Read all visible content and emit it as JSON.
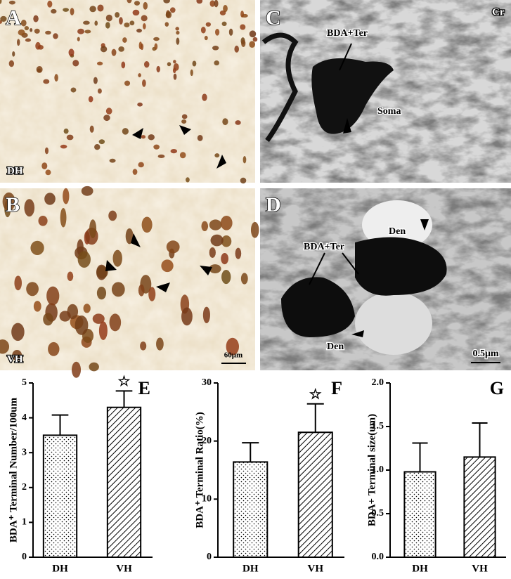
{
  "panels": [
    {
      "label": "A",
      "region": "DH"
    },
    {
      "label": "B",
      "region": "VH",
      "scale": "60μm"
    },
    {
      "label": "C",
      "corner": "Cr",
      "annotations": [
        "BDA+Ter",
        "Soma"
      ]
    },
    {
      "label": "D",
      "annotations": [
        "BDA+Ter",
        "Den",
        "Den"
      ],
      "scale": "0.5μm"
    }
  ],
  "chart_data": [
    {
      "type": "bar",
      "label": "E",
      "ylabel": "BDA⁺ Terminal Number/100um",
      "categories": [
        "DH",
        "VH"
      ],
      "values": [
        3.5,
        4.3
      ],
      "errors": [
        0.58,
        0.47
      ],
      "markers": [
        null,
        "☆"
      ],
      "patterns": [
        "dots",
        "hatch"
      ],
      "color": "#000000",
      "ylim": [
        0,
        5
      ],
      "yticks": [
        0,
        1,
        2,
        3,
        4,
        5
      ]
    },
    {
      "type": "bar",
      "label": "F",
      "ylabel": "BDA⁺ Terminal Ratio(%)",
      "categories": [
        "DH",
        "VH"
      ],
      "values": [
        16.4,
        21.5
      ],
      "errors": [
        3.3,
        4.9
      ],
      "markers": [
        null,
        "☆"
      ],
      "patterns": [
        "dots",
        "hatch"
      ],
      "color": "#000000",
      "ylim": [
        0,
        30
      ],
      "yticks": [
        0,
        10,
        20,
        30
      ]
    },
    {
      "type": "bar",
      "label": "G",
      "ylabel": "BDA+ Terminal size(um)",
      "categories": [
        "DH",
        "VH"
      ],
      "values": [
        0.98,
        1.15
      ],
      "errors": [
        0.33,
        0.39
      ],
      "patterns": [
        "dots",
        "hatch"
      ],
      "color": "#000000",
      "ylim": [
        0,
        2
      ],
      "yticks": [
        {
          "value": 0,
          "label": "0.0"
        },
        0.5,
        {
          "value": 1,
          "label": "1.0"
        },
        1.5,
        {
          "value": 2,
          "label": "2.0"
        }
      ]
    }
  ]
}
